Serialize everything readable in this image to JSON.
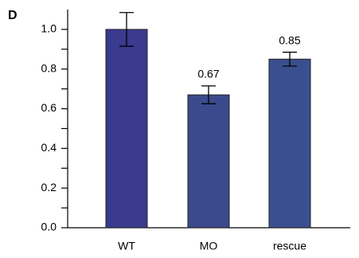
{
  "chart_data": {
    "type": "bar",
    "panel_label": "D",
    "categories": [
      "WT",
      "MO",
      "rescue"
    ],
    "values": [
      1.0,
      0.67,
      0.85
    ],
    "value_labels": [
      null,
      "0.67",
      "0.85"
    ],
    "errors": [
      0.085,
      0.045,
      0.035
    ],
    "colors": [
      "#3a3a8e",
      "#3b4a8c",
      "#3a4f8f"
    ],
    "ylim": [
      0,
      1.1
    ],
    "yticks": [
      {
        "value": 0,
        "label": "0.0"
      },
      0.2,
      0.4,
      0.6,
      0.8,
      {
        "value": 1,
        "label": "1.0"
      }
    ],
    "yminor_ticks": [
      0.1,
      0.3,
      0.5,
      0.7,
      0.9
    ]
  }
}
